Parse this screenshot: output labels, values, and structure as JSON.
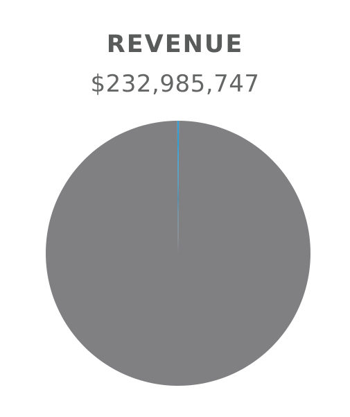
{
  "chart_data": {
    "type": "pie",
    "title": "REVENUE",
    "total_label": "$232,985,747",
    "slices": [
      {
        "value": 99.8,
        "color": "#808083"
      },
      {
        "value": 0.2,
        "color": "#2f9fd6"
      }
    ]
  }
}
